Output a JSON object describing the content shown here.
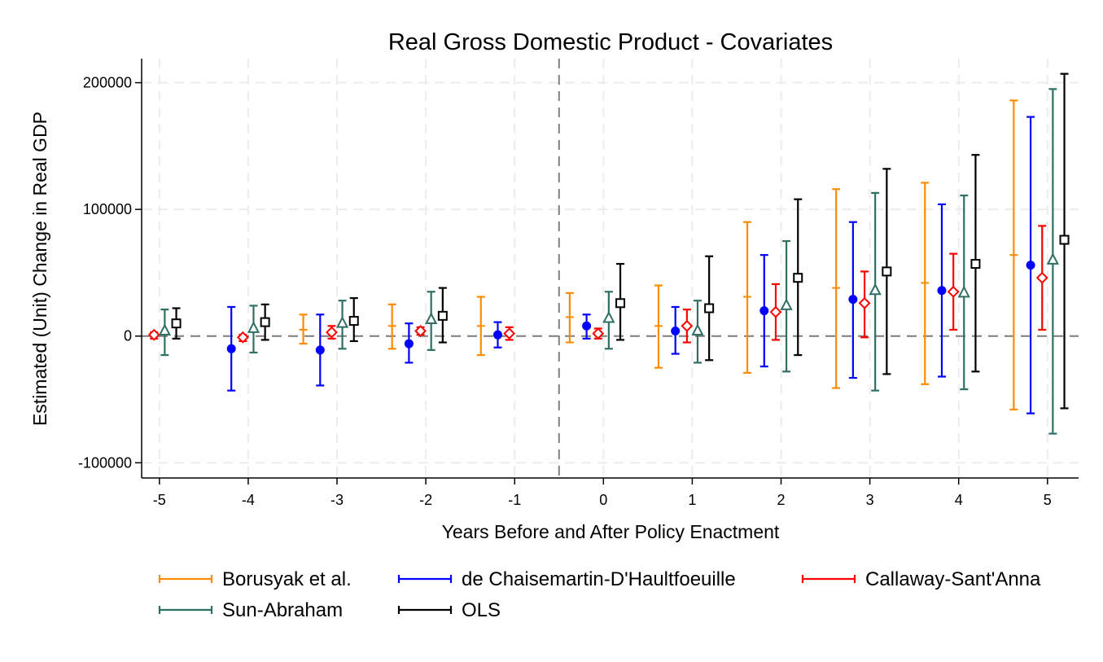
{
  "chart_data": {
    "type": "errorbar",
    "title": "Real Gross Domestic Product - Covariates",
    "xlabel": "Years Before and After Policy Enactment",
    "ylabel": "Estimated (Unit) Change in Real GDP",
    "x_ticks": [
      "-5",
      "-4",
      "-3",
      "-2",
      "-1",
      "0",
      "1",
      "2",
      "3",
      "4",
      "5"
    ],
    "y_ticks": [
      "-100000",
      "0",
      "100000",
      "200000"
    ],
    "xlim": [
      -5.2,
      5.35
    ],
    "ylim": [
      -112000,
      219000
    ],
    "reference_lines": {
      "y": 0,
      "x": -0.5
    },
    "grid": true,
    "legend_position": "bottom",
    "series": [
      {
        "name": "Borusyak et al.",
        "color": "#ff8c00",
        "marker": "none",
        "x": [
          -3,
          -2,
          -1,
          0,
          1,
          2,
          3,
          4,
          5
        ],
        "y": [
          5000,
          8000,
          8000,
          15000,
          8000,
          31000,
          38000,
          42000,
          64000
        ],
        "ci_low": [
          -6000,
          -10000,
          -15000,
          -5000,
          -25000,
          -29000,
          -41000,
          -38000,
          -58000
        ],
        "ci_high": [
          17000,
          25000,
          31000,
          34000,
          40000,
          90000,
          116000,
          121000,
          186000
        ]
      },
      {
        "name": "de Chaisemartin-D'Haultfoeuille",
        "color": "#0000ff",
        "marker": "circle",
        "x": [
          -4,
          -3,
          -2,
          -1,
          0,
          1,
          2,
          3,
          4,
          5
        ],
        "y": [
          -10000,
          -11000,
          -6000,
          1000,
          8000,
          4000,
          20000,
          29000,
          36000,
          56000
        ],
        "ci_low": [
          -43000,
          -39000,
          -21000,
          -9000,
          -2000,
          -14000,
          -24000,
          -33000,
          -32000,
          -61000
        ],
        "ci_high": [
          23000,
          17000,
          10000,
          11000,
          17000,
          23000,
          64000,
          90000,
          104000,
          173000
        ]
      },
      {
        "name": "Callaway-Sant'Anna",
        "color": "#ff0000",
        "marker": "diamond",
        "x": [
          -5,
          -4,
          -3,
          -2,
          -1,
          0,
          1,
          2,
          3,
          4,
          5
        ],
        "y": [
          1000,
          -1000,
          3000,
          4000,
          2000,
          2000,
          8000,
          19000,
          26000,
          35000,
          46000
        ],
        "ci_low": [
          -2000,
          -4000,
          -2000,
          1000,
          -3000,
          -2000,
          -5000,
          -3000,
          -1000,
          5000,
          5000
        ],
        "ci_high": [
          3000,
          1000,
          8000,
          7000,
          7000,
          6000,
          21000,
          41000,
          51000,
          65000,
          87000
        ]
      },
      {
        "name": "Sun-Abraham",
        "color": "#2f6f64",
        "marker": "triangle",
        "x": [
          -5,
          -4,
          -3,
          -2,
          0,
          1,
          2,
          3,
          4,
          5
        ],
        "y": [
          4000,
          6000,
          10000,
          13000,
          14000,
          4000,
          24000,
          36000,
          34000,
          60000
        ],
        "ci_low": [
          -15000,
          -13000,
          -10000,
          -11000,
          -10000,
          -21000,
          -28000,
          -43000,
          -42000,
          -77000
        ],
        "ci_high": [
          21000,
          24000,
          28000,
          35000,
          35000,
          28000,
          75000,
          113000,
          111000,
          195000
        ]
      },
      {
        "name": "OLS",
        "color": "#000000",
        "marker": "square",
        "x": [
          -5,
          -4,
          -3,
          -2,
          0,
          1,
          2,
          3,
          4,
          5
        ],
        "y": [
          10000,
          11000,
          12000,
          16000,
          26000,
          22000,
          46000,
          51000,
          57000,
          76000
        ],
        "ci_low": [
          -2000,
          -3000,
          -4000,
          -5000,
          -3000,
          -19000,
          -15000,
          -30000,
          -28000,
          -57000
        ],
        "ci_high": [
          22000,
          25000,
          30000,
          38000,
          57000,
          63000,
          108000,
          132000,
          143000,
          207000
        ]
      }
    ],
    "legend_rows": [
      [
        "Borusyak et al.",
        "de Chaisemartin-D'Haultfoeuille",
        "Callaway-Sant'Anna"
      ],
      [
        "Sun-Abraham",
        "OLS"
      ]
    ]
  }
}
